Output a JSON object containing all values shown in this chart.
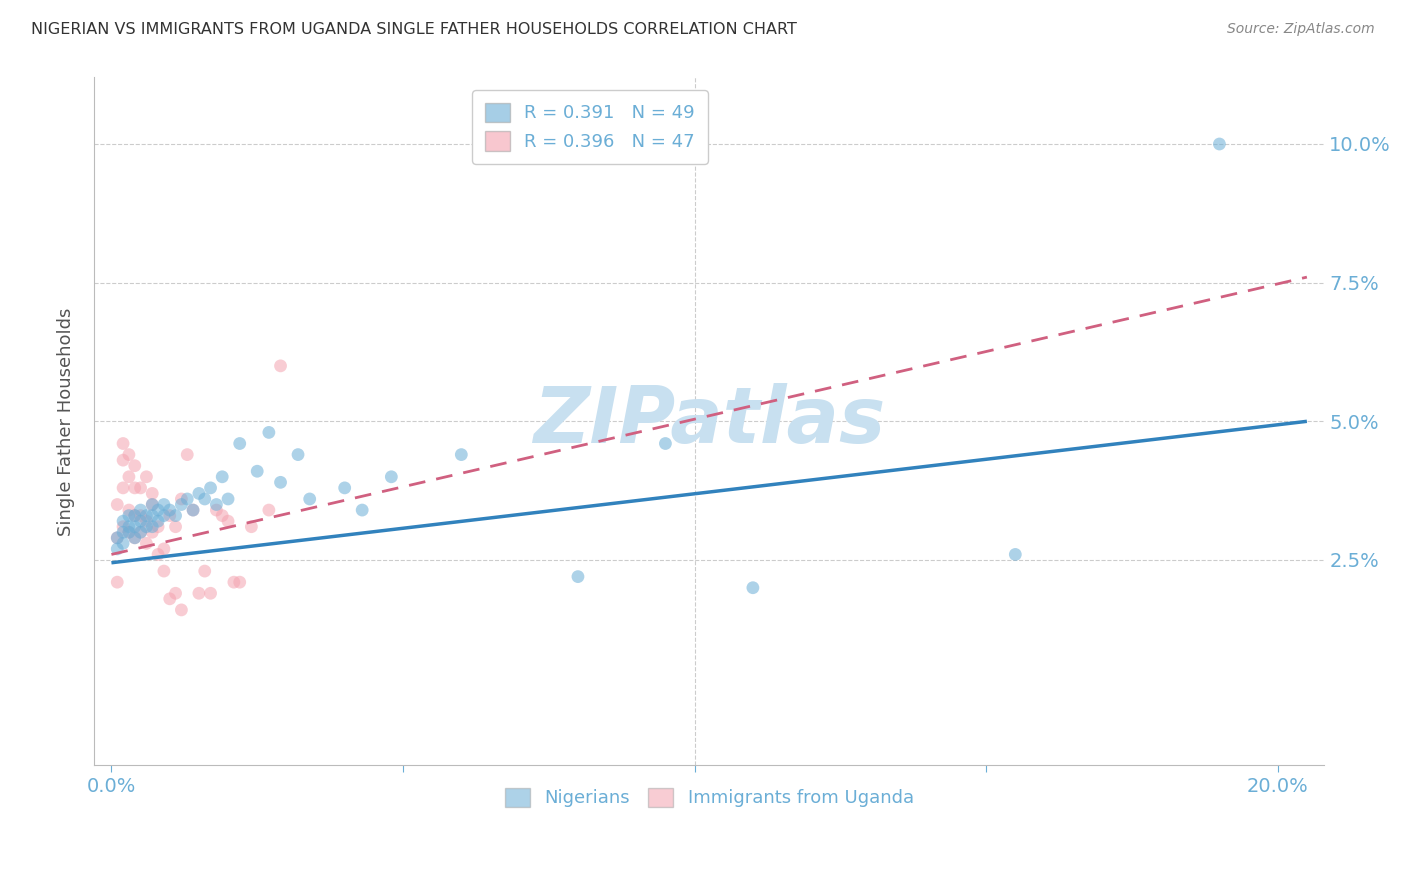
{
  "title": "NIGERIAN VS IMMIGRANTS FROM UGANDA SINGLE FATHER HOUSEHOLDS CORRELATION CHART",
  "source": "Source: ZipAtlas.com",
  "ylabel": "Single Father Households",
  "xlabel_ticks": [
    0.0,
    0.05,
    0.1,
    0.15,
    0.2
  ],
  "xlabel_labels": [
    "0.0%",
    "",
    "",
    "",
    "20.0%"
  ],
  "ytick_values": [
    0.0,
    0.025,
    0.05,
    0.075,
    0.1
  ],
  "ytick_labels": [
    "",
    "2.5%",
    "5.0%",
    "7.5%",
    "10.0%"
  ],
  "xlim": [
    -0.003,
    0.208
  ],
  "ylim": [
    -0.012,
    0.112
  ],
  "legend_entries": [
    {
      "label": "R = 0.391   N = 49",
      "color": "#6baed6"
    },
    {
      "label": "R = 0.396   N = 47",
      "color": "#f4a3b0"
    }
  ],
  "legend_labels_bottom": [
    "Nigerians",
    "Immigrants from Uganda"
  ],
  "watermark": "ZIPatlas",
  "nigerian_scatter": [
    [
      0.001,
      0.027
    ],
    [
      0.001,
      0.029
    ],
    [
      0.002,
      0.028
    ],
    [
      0.002,
      0.03
    ],
    [
      0.002,
      0.032
    ],
    [
      0.003,
      0.03
    ],
    [
      0.003,
      0.031
    ],
    [
      0.003,
      0.033
    ],
    [
      0.004,
      0.029
    ],
    [
      0.004,
      0.031
    ],
    [
      0.004,
      0.033
    ],
    [
      0.005,
      0.03
    ],
    [
      0.005,
      0.032
    ],
    [
      0.005,
      0.034
    ],
    [
      0.006,
      0.031
    ],
    [
      0.006,
      0.033
    ],
    [
      0.007,
      0.031
    ],
    [
      0.007,
      0.033
    ],
    [
      0.007,
      0.035
    ],
    [
      0.008,
      0.032
    ],
    [
      0.008,
      0.034
    ],
    [
      0.009,
      0.033
    ],
    [
      0.009,
      0.035
    ],
    [
      0.01,
      0.034
    ],
    [
      0.011,
      0.033
    ],
    [
      0.012,
      0.035
    ],
    [
      0.013,
      0.036
    ],
    [
      0.014,
      0.034
    ],
    [
      0.015,
      0.037
    ],
    [
      0.016,
      0.036
    ],
    [
      0.017,
      0.038
    ],
    [
      0.018,
      0.035
    ],
    [
      0.019,
      0.04
    ],
    [
      0.02,
      0.036
    ],
    [
      0.022,
      0.046
    ],
    [
      0.025,
      0.041
    ],
    [
      0.027,
      0.048
    ],
    [
      0.029,
      0.039
    ],
    [
      0.032,
      0.044
    ],
    [
      0.034,
      0.036
    ],
    [
      0.04,
      0.038
    ],
    [
      0.043,
      0.034
    ],
    [
      0.048,
      0.04
    ],
    [
      0.06,
      0.044
    ],
    [
      0.08,
      0.022
    ],
    [
      0.095,
      0.046
    ],
    [
      0.11,
      0.02
    ],
    [
      0.155,
      0.026
    ],
    [
      0.19,
      0.1
    ]
  ],
  "uganda_scatter": [
    [
      0.001,
      0.021
    ],
    [
      0.001,
      0.029
    ],
    [
      0.001,
      0.035
    ],
    [
      0.002,
      0.031
    ],
    [
      0.002,
      0.038
    ],
    [
      0.002,
      0.043
    ],
    [
      0.002,
      0.046
    ],
    [
      0.003,
      0.03
    ],
    [
      0.003,
      0.034
    ],
    [
      0.003,
      0.04
    ],
    [
      0.003,
      0.044
    ],
    [
      0.004,
      0.029
    ],
    [
      0.004,
      0.033
    ],
    [
      0.004,
      0.038
    ],
    [
      0.004,
      0.042
    ],
    [
      0.005,
      0.03
    ],
    [
      0.005,
      0.033
    ],
    [
      0.005,
      0.038
    ],
    [
      0.006,
      0.028
    ],
    [
      0.006,
      0.032
    ],
    [
      0.006,
      0.04
    ],
    [
      0.007,
      0.03
    ],
    [
      0.007,
      0.035
    ],
    [
      0.007,
      0.037
    ],
    [
      0.008,
      0.026
    ],
    [
      0.008,
      0.031
    ],
    [
      0.009,
      0.023
    ],
    [
      0.009,
      0.027
    ],
    [
      0.01,
      0.033
    ],
    [
      0.01,
      0.018
    ],
    [
      0.011,
      0.019
    ],
    [
      0.011,
      0.031
    ],
    [
      0.012,
      0.016
    ],
    [
      0.012,
      0.036
    ],
    [
      0.013,
      0.044
    ],
    [
      0.014,
      0.034
    ],
    [
      0.015,
      0.019
    ],
    [
      0.016,
      0.023
    ],
    [
      0.017,
      0.019
    ],
    [
      0.018,
      0.034
    ],
    [
      0.019,
      0.033
    ],
    [
      0.02,
      0.032
    ],
    [
      0.021,
      0.021
    ],
    [
      0.022,
      0.021
    ],
    [
      0.024,
      0.031
    ],
    [
      0.027,
      0.034
    ],
    [
      0.029,
      0.06
    ]
  ],
  "nigerian_line": {
    "x0": 0.0,
    "y0": 0.0245,
    "x1": 0.205,
    "y1": 0.05
  },
  "uganda_line": {
    "x0": 0.0,
    "y0": 0.026,
    "x1": 0.205,
    "y1": 0.076
  },
  "scatter_size": 85,
  "nigerian_color": "#6baed6",
  "uganda_color": "#f4a3b0",
  "nigerian_line_color": "#3182bd",
  "uganda_line_color": "#d06080",
  "background_color": "#ffffff",
  "grid_color": "#cccccc",
  "tick_color": "#6baed6",
  "title_color": "#333333",
  "watermark_color": "#c8e0f0"
}
